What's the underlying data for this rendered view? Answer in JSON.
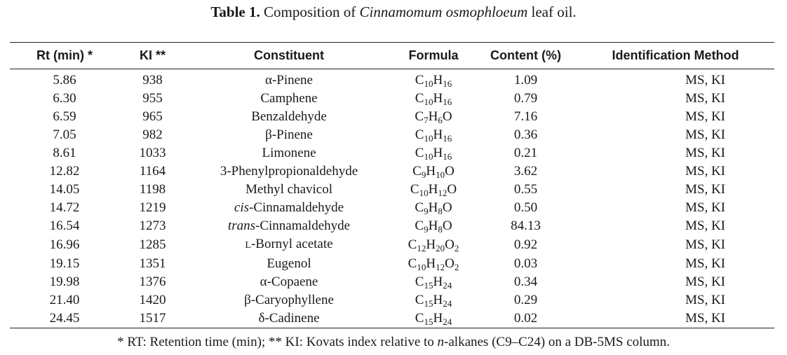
{
  "caption": {
    "label": "Table 1.",
    "text_before": " Composition of ",
    "species": "Cinnamomum osmophloeum",
    "text_after": " leaf oil."
  },
  "columns": [
    "Rt (min) *",
    "KI **",
    "Constituent",
    "Formula",
    "Content (%)",
    "Identification Method"
  ],
  "rows": [
    {
      "rt": "5.86",
      "ki": "938",
      "constituent": {
        "prefix": "",
        "name": "α-Pinene"
      },
      "formula": [
        [
          "C",
          "10"
        ],
        [
          "H",
          "16"
        ]
      ],
      "content": "1.09",
      "method": "MS, KI"
    },
    {
      "rt": "6.30",
      "ki": "955",
      "constituent": {
        "prefix": "",
        "name": "Camphene"
      },
      "formula": [
        [
          "C",
          "10"
        ],
        [
          "H",
          "16"
        ]
      ],
      "content": "0.79",
      "method": "MS, KI"
    },
    {
      "rt": "6.59",
      "ki": "965",
      "constituent": {
        "prefix": "",
        "name": "Benzaldehyde"
      },
      "formula": [
        [
          "C",
          "7"
        ],
        [
          "H",
          "6"
        ],
        [
          "O",
          ""
        ]
      ],
      "content": "7.16",
      "method": "MS, KI"
    },
    {
      "rt": "7.05",
      "ki": "982",
      "constituent": {
        "prefix": "",
        "name": "β-Pinene"
      },
      "formula": [
        [
          "C",
          "10"
        ],
        [
          "H",
          "16"
        ]
      ],
      "content": "0.36",
      "method": "MS, KI"
    },
    {
      "rt": "8.61",
      "ki": "1033",
      "constituent": {
        "prefix": "",
        "name": "Limonene"
      },
      "formula": [
        [
          "C",
          "10"
        ],
        [
          "H",
          "16"
        ]
      ],
      "content": "0.21",
      "method": "MS, KI"
    },
    {
      "rt": "12.82",
      "ki": "1164",
      "constituent": {
        "prefix": "",
        "name": "3-Phenylpropionaldehyde"
      },
      "formula": [
        [
          "C",
          "9"
        ],
        [
          "H",
          "10"
        ],
        [
          "O",
          ""
        ]
      ],
      "content": "3.62",
      "method": "MS, KI"
    },
    {
      "rt": "14.05",
      "ki": "1198",
      "constituent": {
        "prefix": "",
        "name": "Methyl chavicol"
      },
      "formula": [
        [
          "C",
          "10"
        ],
        [
          "H",
          "12"
        ],
        [
          "O",
          ""
        ]
      ],
      "content": "0.55",
      "method": "MS, KI"
    },
    {
      "rt": "14.72",
      "ki": "1219",
      "constituent": {
        "prefix": "cis",
        "name": "-Cinnamaldehyde"
      },
      "formula": [
        [
          "C",
          "9"
        ],
        [
          "H",
          "8"
        ],
        [
          "O",
          ""
        ]
      ],
      "content": "0.50",
      "method": "MS, KI"
    },
    {
      "rt": "16.54",
      "ki": "1273",
      "constituent": {
        "prefix": "trans",
        "name": "-Cinnamaldehyde"
      },
      "formula": [
        [
          "C",
          "9"
        ],
        [
          "H",
          "8"
        ],
        [
          "O",
          ""
        ]
      ],
      "content": "84.13",
      "method": "MS, KI"
    },
    {
      "rt": "16.96",
      "ki": "1285",
      "constituent": {
        "smallcaps": "L",
        "name": "-Bornyl acetate"
      },
      "formula": [
        [
          "C",
          "12"
        ],
        [
          "H",
          "20"
        ],
        [
          "O",
          "2"
        ]
      ],
      "content": "0.92",
      "method": "MS, KI"
    },
    {
      "rt": "19.15",
      "ki": "1351",
      "constituent": {
        "prefix": "",
        "name": "Eugenol"
      },
      "formula": [
        [
          "C",
          "10"
        ],
        [
          "H",
          "12"
        ],
        [
          "O",
          "2"
        ]
      ],
      "content": "0.03",
      "method": "MS, KI"
    },
    {
      "rt": "19.98",
      "ki": "1376",
      "constituent": {
        "prefix": "",
        "name": "α-Copaene"
      },
      "formula": [
        [
          "C",
          "15"
        ],
        [
          "H",
          "24"
        ]
      ],
      "content": "0.34",
      "method": "MS, KI"
    },
    {
      "rt": "21.40",
      "ki": "1420",
      "constituent": {
        "prefix": "",
        "name": "β-Caryophyllene"
      },
      "formula": [
        [
          "C",
          "15"
        ],
        [
          "H",
          "24"
        ]
      ],
      "content": "0.29",
      "method": "MS, KI"
    },
    {
      "rt": "24.45",
      "ki": "1517",
      "constituent": {
        "prefix": "",
        "name": "δ-Cadinene"
      },
      "formula": [
        [
          "C",
          "15"
        ],
        [
          "H",
          "24"
        ]
      ],
      "content": "0.02",
      "method": "MS, KI"
    }
  ],
  "footnote": {
    "before": "* RT: Retention time (min); ** KI: Kovats index relative to ",
    "italic": "n",
    "after": "-alkanes (C9–C24) on a DB-5MS column."
  }
}
